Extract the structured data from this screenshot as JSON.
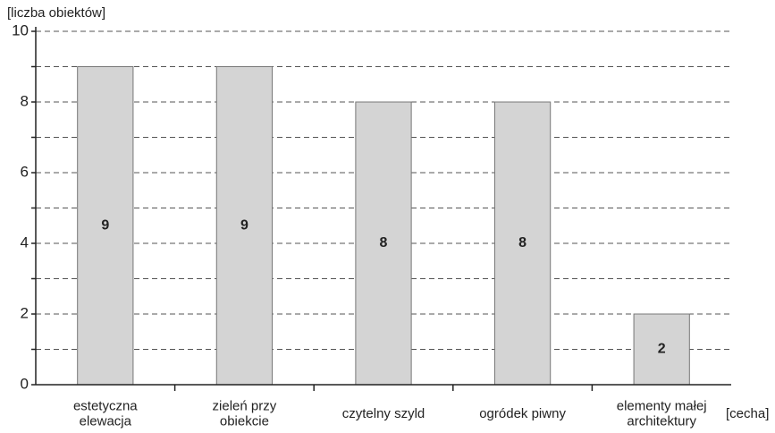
{
  "chart_data": {
    "type": "bar",
    "y_label": "[liczba obiektów]",
    "x_label": "[cecha]",
    "categories": [
      [
        "estetyczna",
        "elewacja"
      ],
      [
        "zieleń przy",
        "obiekcie"
      ],
      [
        "czytelny szyld"
      ],
      [
        "ogródek piwny"
      ],
      [
        "elementy małej",
        "architektury"
      ]
    ],
    "values": [
      9,
      9,
      8,
      8,
      2
    ],
    "color": "#d4d4d4",
    "ylim": [
      0,
      10
    ],
    "yticks": [
      0,
      2,
      4,
      6,
      8,
      10
    ],
    "minor_yticks": [
      1,
      3,
      5,
      7,
      9
    ],
    "grid": true
  }
}
